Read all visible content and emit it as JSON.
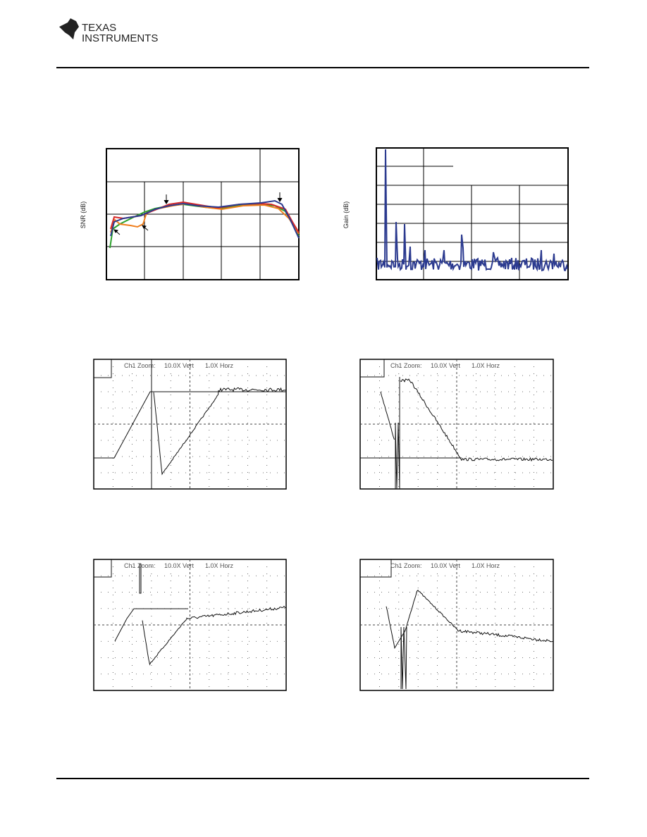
{
  "header": {
    "logo": {
      "line1": "TEXAS",
      "line2": "INSTRUMENTS"
    }
  },
  "figures": {
    "snr": {
      "y_label": "SNR (dB)"
    },
    "gain": {
      "y_label": "Gain (dB)"
    },
    "scopes": [
      {
        "label": "Ch1 Zoom:",
        "vert": "10.0X Vert",
        "horz": "1.0X Horz"
      },
      {
        "label": "Ch1 Zoom:",
        "vert": "10.0X Vert",
        "horz": "1.0X Horz"
      },
      {
        "label": "Ch1 Zoom:",
        "vert": "10.0X Vert",
        "horz": "1.0X Horz"
      },
      {
        "label": "Ch1 Zoom:",
        "vert": "10.0X Vert",
        "horz": "1.0X Horz"
      }
    ]
  }
}
